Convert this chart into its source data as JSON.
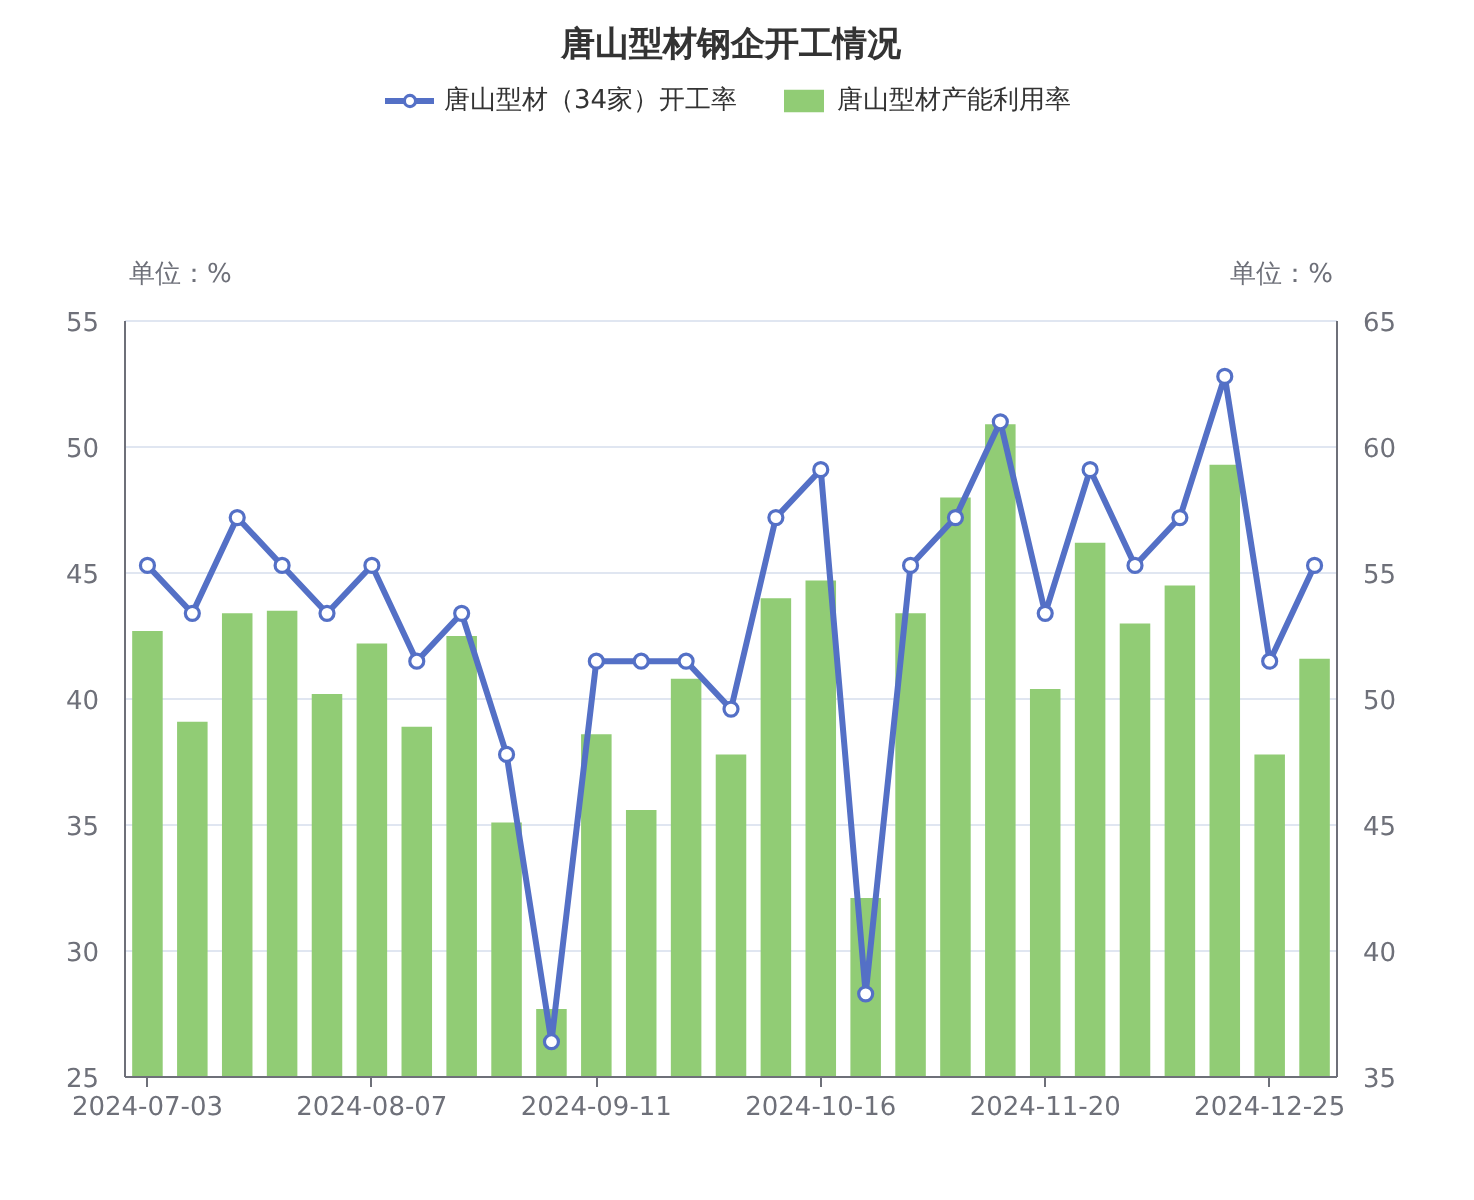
{
  "chart_data": {
    "type": "bar",
    "title": "唐山型材钢企开工情况",
    "ylabel": "单位：%",
    "y2label": "单位：%",
    "categories": [
      "2024-07-03",
      null,
      null,
      null,
      null,
      "2024-08-07",
      null,
      null,
      null,
      null,
      "2024-09-11",
      null,
      null,
      null,
      null,
      "2024-10-16",
      null,
      null,
      null,
      null,
      "2024-11-20",
      null,
      null,
      null,
      null,
      "2024-12-25",
      null
    ],
    "series": [
      {
        "name": "唐山型材（34家）开工率",
        "type": "line",
        "color": "#5470c6",
        "values": [
          45.3,
          43.4,
          47.2,
          45.3,
          43.4,
          45.3,
          41.5,
          43.4,
          37.8,
          26.4,
          41.5,
          41.5,
          41.5,
          39.6,
          47.2,
          49.1,
          28.3,
          45.3,
          47.2,
          51.0,
          43.4,
          49.1,
          45.3,
          47.2,
          52.8,
          41.5,
          45.3
        ]
      },
      {
        "name": "唐山型材产能利用率",
        "axis": "y2",
        "color": "#91cc75",
        "values": [
          52.7,
          49.1,
          53.4,
          53.5,
          50.2,
          52.2,
          48.9,
          52.5,
          45.1,
          37.7,
          48.6,
          45.6,
          50.8,
          47.8,
          54.0,
          54.7,
          42.1,
          53.4,
          58.0,
          60.9,
          50.4,
          56.2,
          53.0,
          54.5,
          59.3,
          47.8,
          51.6
        ]
      }
    ],
    "ylim": [
      25,
      55
    ],
    "yticks": [
      25,
      30,
      35,
      40,
      45,
      50,
      55
    ],
    "y2lim": [
      35,
      65
    ],
    "y2ticks": [
      35,
      40,
      45,
      50,
      55,
      60,
      65
    ],
    "grid": "y",
    "legend": "top",
    "marker": "circle",
    "line_style": "solid"
  }
}
